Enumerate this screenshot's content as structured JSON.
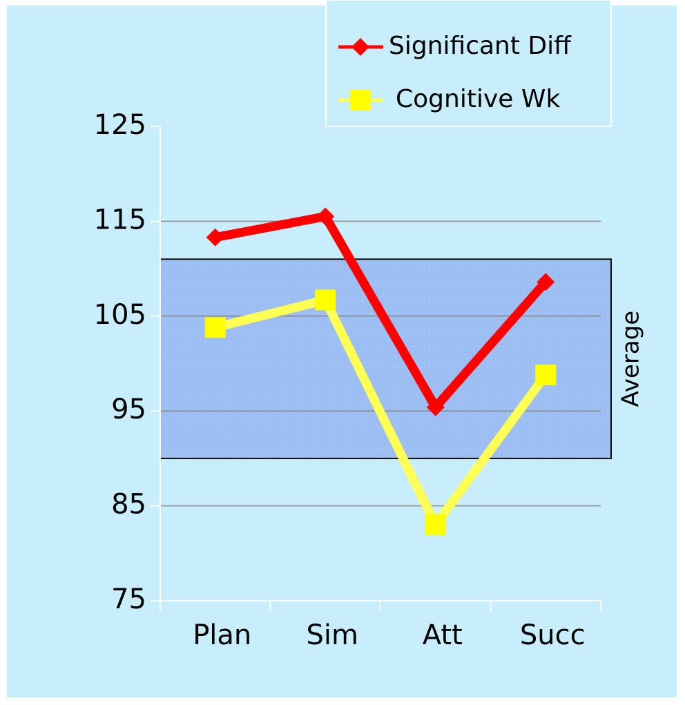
{
  "chart_data": {
    "type": "line",
    "categories": [
      "Plan",
      "Sim",
      "Att",
      "Succ"
    ],
    "series": [
      {
        "name": "Significant Diff",
        "color": "#ff0000",
        "marker": "diamond",
        "values": [
          113.3,
          115.5,
          95.4,
          108.6
        ]
      },
      {
        "name": "Cognitive Wk",
        "color": "#ffff55",
        "marker": "square",
        "values": [
          103.8,
          106.7,
          83,
          98.8
        ]
      }
    ],
    "band": {
      "label": "Average",
      "range": [
        90,
        111
      ],
      "color": "#9ec0f2"
    },
    "ylim": [
      75,
      125
    ],
    "yticks": [
      75,
      85,
      95,
      105,
      115,
      125
    ],
    "grid": true,
    "legend": "top-right"
  }
}
